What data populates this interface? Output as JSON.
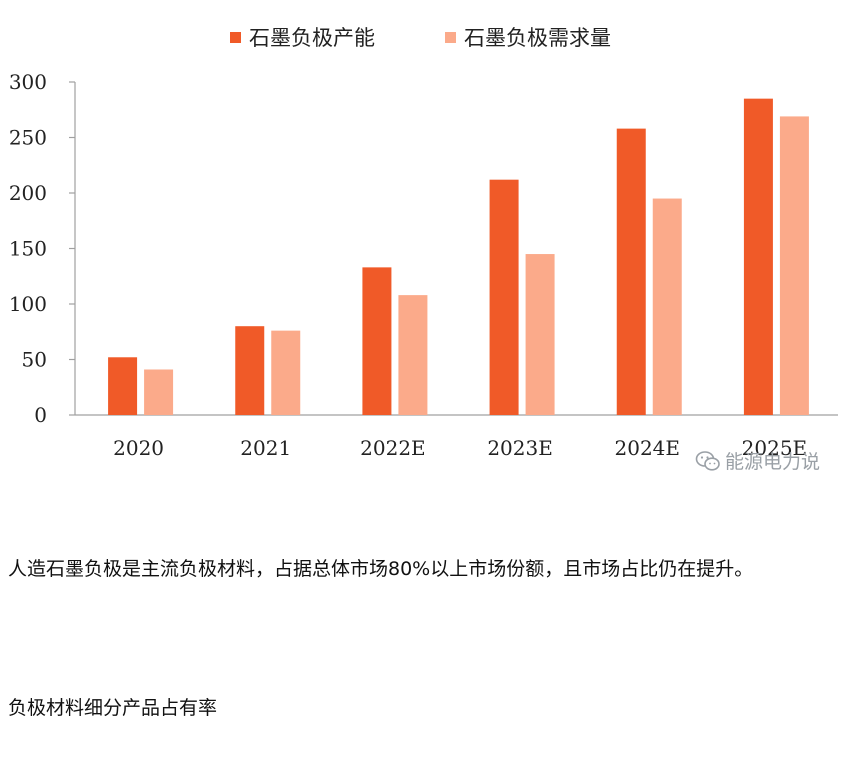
{
  "colors": {
    "capacity": "#f05a28",
    "demand": "#fbaa8a",
    "axis": "#a0a0a0"
  },
  "chart_data": {
    "type": "bar",
    "categories": [
      "2020",
      "2021",
      "2022E",
      "2023E",
      "2024E",
      "2025E"
    ],
    "series": [
      {
        "name": "石墨负极产能",
        "values": [
          52,
          80,
          133,
          212,
          258,
          285
        ]
      },
      {
        "name": "石墨负极需求量",
        "values": [
          41,
          76,
          108,
          145,
          195,
          269
        ]
      }
    ],
    "yticks": [
      "0",
      "50",
      "100",
      "150",
      "200",
      "250",
      "300"
    ],
    "ylim": [
      0,
      300
    ],
    "legend_position": "top",
    "grid": false
  },
  "watermark": {
    "icon": "wechat-icon",
    "text": "能源电力说"
  },
  "article": {
    "paragraph1": "人造石墨负极是主流负极材料，占据总体市场80%以上市场份额，且市场占比仍在提升。",
    "paragraph2": "负极材料细分产品占有率"
  }
}
